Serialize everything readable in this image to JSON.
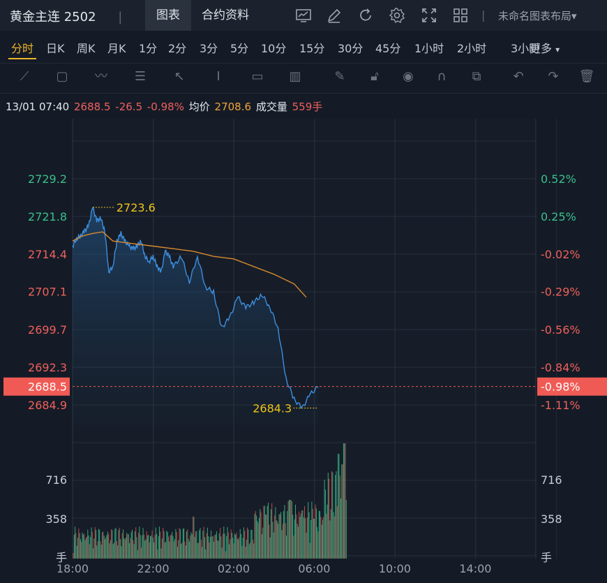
{
  "header": {
    "title": "黄金主连 2502",
    "separator": "|",
    "tabs": [
      {
        "label": "图表",
        "active": true
      },
      {
        "label": "合约资料",
        "active": false
      }
    ],
    "icons": [
      "chart-line-icon",
      "pencil-icon",
      "refresh-icon",
      "gear-icon",
      "fullscreen-icon",
      "grid-icon"
    ],
    "layout_label": "未命名图表布局",
    "layout_caret": "▾"
  },
  "periods": [
    {
      "label": "分时",
      "active": true
    },
    {
      "label": "日K"
    },
    {
      "label": "周K"
    },
    {
      "label": "月K"
    },
    {
      "label": "1分"
    },
    {
      "label": "2分"
    },
    {
      "label": "3分"
    },
    {
      "label": "5分"
    },
    {
      "label": "10分"
    },
    {
      "label": "15分"
    },
    {
      "label": "30分"
    },
    {
      "label": "45分"
    },
    {
      "label": "1小时"
    },
    {
      "label": "2小时"
    },
    {
      "label": "3小时"
    }
  ],
  "more_label": "更多",
  "more_caret": "▾",
  "tools": [
    "trend-line-icon",
    "rectangle-icon",
    "wave-icon",
    "fib-icon",
    "arrow-icon",
    "text-cursor-icon",
    "label-icon",
    "bar-pattern-icon",
    "brush-icon",
    "lock-icon",
    "eye-icon",
    "magnet-icon",
    "layers-icon",
    "undo-icon",
    "redo-icon",
    "trash-icon"
  ],
  "info": {
    "time": "13/01 07:40",
    "price": "2688.5",
    "change": "-26.5",
    "pct": "-0.98%",
    "avg_label": "均价",
    "avg": "2708.6",
    "vol_label": "成交量",
    "vol": "559手"
  },
  "colors": {
    "up": "#3bbf8c",
    "down": "#f0605d",
    "line": "#3d8fe0",
    "avg": "#d88a2e",
    "accent": "#f0b429"
  },
  "chart_data": {
    "type": "line",
    "x_ticks": [
      "18:00",
      "22:00",
      "02:00",
      "06:00",
      "10:00",
      "14:00"
    ],
    "y_ticks": [
      2729.2,
      2721.8,
      2714.4,
      2707.1,
      2699.7,
      2692.3,
      2684.9
    ],
    "y_tick_labels": [
      "2729.2",
      "2721.8",
      "2714.4",
      "2707.1",
      "2699.7",
      "2692.3",
      "2684.9"
    ],
    "pct_ticks": [
      "0.52%",
      "0.25%",
      "-0.02%",
      "-0.29%",
      "-0.56%",
      "-0.84%",
      "-1.11%"
    ],
    "current_price": "2688.5",
    "current_pct": "-0.98%",
    "high_label": "2723.6",
    "low_label": "2684.3",
    "high": 2723.6,
    "low": 2684.3,
    "price_series": {
      "hours": [
        0,
        0.2,
        0.4,
        0.6,
        0.8,
        1.0,
        1.2,
        1.4,
        1.6,
        1.8,
        2.0,
        2.2,
        2.4,
        2.6,
        2.8,
        3.0,
        3.2,
        3.4,
        3.6,
        3.8,
        4.0,
        4.2,
        4.4,
        4.6,
        4.8,
        5.0,
        5.4,
        5.8,
        6.2,
        6.6,
        7.0,
        7.4,
        7.8,
        8.2,
        8.6,
        9.0,
        9.4,
        9.8,
        10.2,
        10.6,
        11.0,
        11.4,
        11.8,
        12.2,
        12.4,
        12.6,
        12.8,
        13.0,
        13.2,
        13.4,
        13.6
      ],
      "values": [
        2716,
        2717.5,
        2718,
        2719,
        2720,
        2723.6,
        2721,
        2721.5,
        2719,
        2711,
        2712,
        2717,
        2718.5,
        2717,
        2716,
        2715.5,
        2716,
        2717,
        2714,
        2713,
        2714,
        2712,
        2711,
        2715,
        2714,
        2712,
        2714,
        2709,
        2714,
        2708,
        2707,
        2700,
        2702,
        2706,
        2704,
        2705,
        2706.5,
        2704,
        2700,
        2690,
        2686,
        2684.3,
        2687,
        2688.5,
        2688.5,
        2688.5,
        2688.5,
        2688.5,
        2688.5,
        2688.5,
        2688.5
      ]
    },
    "avg_series": {
      "hours": [
        0,
        0.5,
        1.0,
        1.5,
        2.0,
        3.0,
        4.0,
        5.0,
        6.0,
        7.0,
        8.0,
        9.0,
        10.0,
        11.0,
        11.6
      ],
      "values": [
        2717,
        2718,
        2718.5,
        2718.8,
        2717,
        2716.5,
        2716,
        2715.5,
        2715,
        2714,
        2713.5,
        2712,
        2710.5,
        2708.6,
        2706
      ]
    },
    "volume": {
      "y_ticks_labels": [
        "716",
        "358"
      ],
      "unit_label": "手",
      "max": 1100,
      "hours_end": 13.6,
      "spikes": [
        [
          6.0,
          400
        ],
        [
          6.5,
          200
        ],
        [
          9.6,
          420
        ],
        [
          10.0,
          250
        ],
        [
          10.8,
          560
        ],
        [
          11.4,
          460
        ],
        [
          12.0,
          380
        ],
        [
          13.2,
          1000
        ],
        [
          13.4,
          900
        ],
        [
          13.5,
          1100
        ],
        [
          13.6,
          560
        ]
      ]
    }
  }
}
